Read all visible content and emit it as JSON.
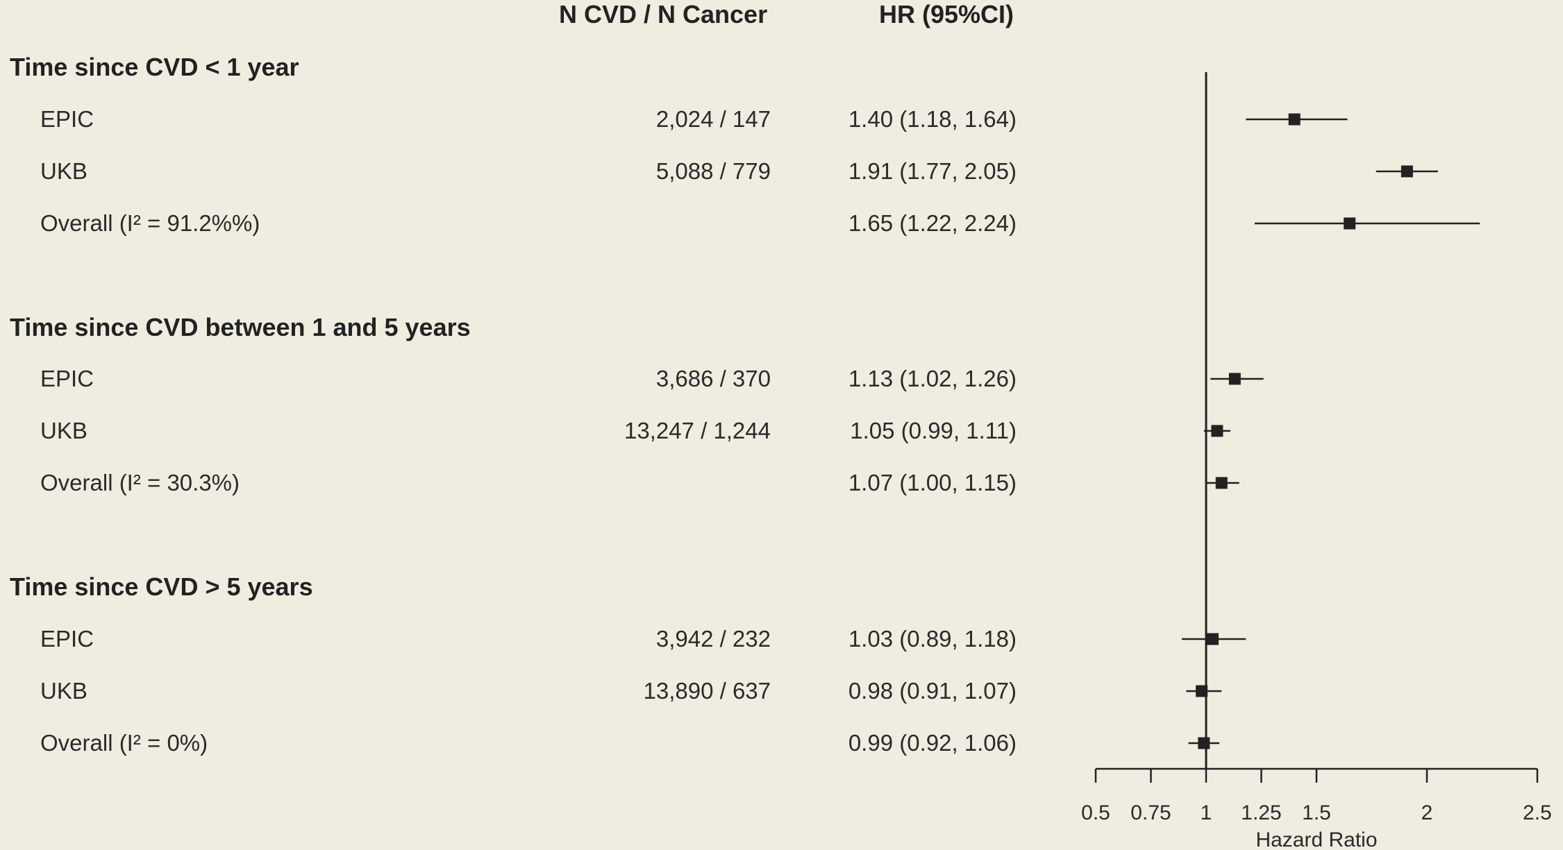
{
  "header": {
    "n_label": "N CVD / N Cancer",
    "hr_label": "HR (95%CI)"
  },
  "groups": [
    {
      "title": "Time since CVD < 1 year",
      "rows": [
        {
          "label": "EPIC",
          "n": "2,024 / 147",
          "hr_text": "1.40 (1.18, 1.64)"
        },
        {
          "label": "UKB",
          "n": "5,088 / 779",
          "hr_text": "1.91 (1.77, 2.05)"
        },
        {
          "label": "Overall (I² = 91.2%%)",
          "n": "",
          "hr_text": "1.65 (1.22, 2.24)"
        }
      ]
    },
    {
      "title": "Time since CVD between 1 and 5 years",
      "rows": [
        {
          "label": "EPIC",
          "n": "3,686 / 370",
          "hr_text": "1.13 (1.02, 1.26)"
        },
        {
          "label": "UKB",
          "n": "13,247 / 1,244",
          "hr_text": "1.05 (0.99, 1.11)"
        },
        {
          "label": "Overall (I² = 30.3%)",
          "n": "",
          "hr_text": "1.07 (1.00, 1.15)"
        }
      ]
    },
    {
      "title": "Time since CVD > 5 years",
      "rows": [
        {
          "label": "EPIC",
          "n": "3,942 / 232",
          "hr_text": "1.03 (0.89, 1.18)"
        },
        {
          "label": "UKB",
          "n": "13,890 / 637",
          "hr_text": "0.98 (0.91, 1.07)"
        },
        {
          "label": "Overall (I² = 0%)",
          "n": "",
          "hr_text": "0.99 (0.92, 1.06)"
        }
      ]
    }
  ],
  "chart_data": {
    "type": "forest",
    "xlabel": "Hazard Ratio",
    "xlim": [
      0.5,
      2.5
    ],
    "ticks": [
      0.5,
      0.75,
      1,
      1.25,
      1.5,
      2,
      2.5
    ],
    "tick_labels": [
      "0.5",
      "0.75",
      "1",
      "1.25",
      "1.5",
      "2",
      "2.5"
    ],
    "reference_line": 1,
    "points": [
      {
        "group": "Time since CVD < 1 year",
        "label": "EPIC",
        "hr": 1.4,
        "lower": 1.18,
        "upper": 1.64
      },
      {
        "group": "Time since CVD < 1 year",
        "label": "UKB",
        "hr": 1.91,
        "lower": 1.77,
        "upper": 2.05
      },
      {
        "group": "Time since CVD < 1 year",
        "label": "Overall",
        "hr": 1.65,
        "lower": 1.22,
        "upper": 2.24
      },
      {
        "group": "Time since CVD between 1 and 5 years",
        "label": "EPIC",
        "hr": 1.13,
        "lower": 1.02,
        "upper": 1.26
      },
      {
        "group": "Time since CVD between 1 and 5 years",
        "label": "UKB",
        "hr": 1.05,
        "lower": 0.99,
        "upper": 1.11
      },
      {
        "group": "Time since CVD between 1 and 5 years",
        "label": "Overall",
        "hr": 1.07,
        "lower": 1.0,
        "upper": 1.15
      },
      {
        "group": "Time since CVD > 5 years",
        "label": "EPIC",
        "hr": 1.03,
        "lower": 0.89,
        "upper": 1.18
      },
      {
        "group": "Time since CVD > 5 years",
        "label": "UKB",
        "hr": 0.98,
        "lower": 0.91,
        "upper": 1.07
      },
      {
        "group": "Time since CVD > 5 years",
        "label": "Overall",
        "hr": 0.99,
        "lower": 0.92,
        "upper": 1.06
      }
    ],
    "marker_color": "#222222"
  }
}
